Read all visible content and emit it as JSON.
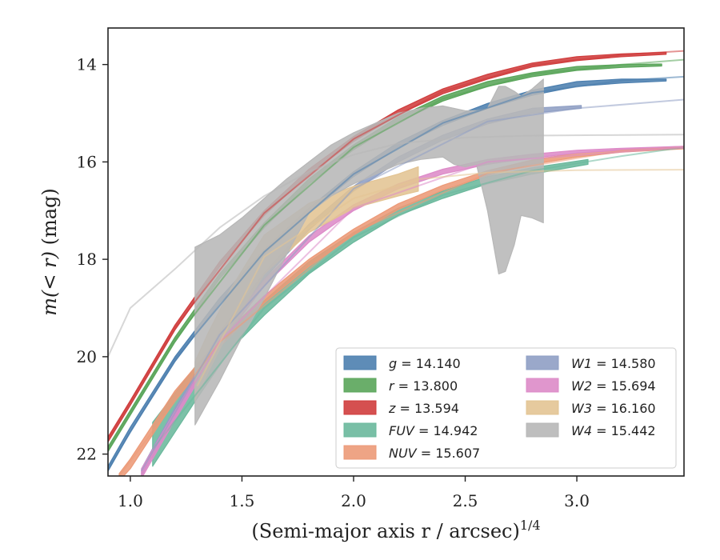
{
  "chart_data": {
    "type": "area",
    "xlabel": "(Semi-major axis r / arcsec)^1/4",
    "ylabel": "m(< r) (mag)",
    "xlim": [
      0.9,
      3.48
    ],
    "ylim": [
      22.45,
      13.25
    ],
    "y_inverted": true,
    "grid": false,
    "legend_position": "lower-right",
    "legend_columns": 2,
    "xticks": [
      "1.0",
      "1.5",
      "2.0",
      "2.5",
      "3.0"
    ],
    "xtick_values": [
      1.0,
      1.5,
      2.0,
      2.5,
      3.0
    ],
    "yticks": [
      "14",
      "16",
      "18",
      "20",
      "22"
    ],
    "ytick_values": [
      14,
      16,
      18,
      20,
      22
    ],
    "series": [
      {
        "name": "g = 14.140",
        "color": "#4c7faf",
        "band": [
          [
            0.9,
            22.35,
            22.25
          ],
          [
            1.0,
            21.55,
            21.45
          ],
          [
            1.2,
            20.1,
            20.0
          ],
          [
            1.4,
            18.9,
            18.8
          ],
          [
            1.6,
            17.9,
            17.8
          ],
          [
            1.8,
            17.05,
            16.95
          ],
          [
            2.0,
            16.3,
            16.2
          ],
          [
            2.2,
            15.7,
            15.6
          ],
          [
            2.4,
            15.25,
            15.15
          ],
          [
            2.6,
            14.9,
            14.8
          ],
          [
            2.8,
            14.63,
            14.53
          ],
          [
            3.0,
            14.45,
            14.35
          ],
          [
            3.2,
            14.38,
            14.3
          ],
          [
            3.4,
            14.34,
            14.3
          ]
        ],
        "extrapolation": [
          [
            0.9,
            22.3
          ],
          [
            1.2,
            20.05
          ],
          [
            1.6,
            17.85
          ],
          [
            2.0,
            16.25
          ],
          [
            2.4,
            15.2
          ],
          [
            2.8,
            14.58
          ],
          [
            3.2,
            14.33
          ],
          [
            3.48,
            14.25
          ]
        ]
      },
      {
        "name": "r = 13.800",
        "color": "#5aa55a",
        "band": [
          [
            0.9,
            21.95,
            21.85
          ],
          [
            1.0,
            21.2,
            21.1
          ],
          [
            1.2,
            19.7,
            19.6
          ],
          [
            1.4,
            18.4,
            18.3
          ],
          [
            1.6,
            17.35,
            17.25
          ],
          [
            1.8,
            16.45,
            16.35
          ],
          [
            2.0,
            15.75,
            15.65
          ],
          [
            2.2,
            15.18,
            15.08
          ],
          [
            2.4,
            14.75,
            14.65
          ],
          [
            2.6,
            14.45,
            14.35
          ],
          [
            2.8,
            14.25,
            14.17
          ],
          [
            3.0,
            14.12,
            14.04
          ],
          [
            3.2,
            14.06,
            14.0
          ],
          [
            3.38,
            14.03,
            13.99
          ]
        ],
        "extrapolation": [
          [
            0.9,
            21.9
          ],
          [
            1.2,
            19.65
          ],
          [
            1.6,
            17.3
          ],
          [
            2.0,
            15.7
          ],
          [
            2.4,
            14.7
          ],
          [
            2.8,
            14.2
          ],
          [
            3.2,
            14.0
          ],
          [
            3.48,
            13.9
          ]
        ]
      },
      {
        "name": "z = 13.594",
        "color": "#d03d3d",
        "band": [
          [
            0.9,
            21.75,
            21.65
          ],
          [
            1.0,
            21.0,
            20.9
          ],
          [
            1.2,
            19.45,
            19.35
          ],
          [
            1.4,
            18.15,
            18.05
          ],
          [
            1.6,
            17.1,
            17.0
          ],
          [
            1.8,
            16.25,
            16.15
          ],
          [
            2.0,
            15.58,
            15.48
          ],
          [
            2.2,
            15.03,
            14.93
          ],
          [
            2.4,
            14.6,
            14.5
          ],
          [
            2.6,
            14.3,
            14.2
          ],
          [
            2.8,
            14.05,
            13.97
          ],
          [
            3.0,
            13.92,
            13.84
          ],
          [
            3.2,
            13.84,
            13.78
          ],
          [
            3.4,
            13.79,
            13.75
          ]
        ],
        "extrapolation": [
          [
            0.9,
            21.7
          ],
          [
            1.2,
            19.4
          ],
          [
            1.6,
            17.05
          ],
          [
            2.0,
            15.53
          ],
          [
            2.4,
            14.55
          ],
          [
            2.8,
            14.01
          ],
          [
            3.2,
            13.8
          ],
          [
            3.48,
            13.72
          ]
        ]
      },
      {
        "name": "FUV = 14.942",
        "color": "#6ab89c",
        "band": [
          [
            1.1,
            22.25,
            21.35
          ],
          [
            1.2,
            21.55,
            20.75
          ],
          [
            1.3,
            20.85,
            20.15
          ],
          [
            1.45,
            19.85,
            19.45
          ],
          [
            1.6,
            19.15,
            18.85
          ],
          [
            1.8,
            18.3,
            18.05
          ],
          [
            2.0,
            17.65,
            17.45
          ],
          [
            2.2,
            17.1,
            16.95
          ],
          [
            2.4,
            16.75,
            16.6
          ],
          [
            2.6,
            16.45,
            16.3
          ],
          [
            2.8,
            16.25,
            16.12
          ],
          [
            3.05,
            16.05,
            15.95
          ]
        ],
        "extrapolation": [
          [
            1.1,
            21.9
          ],
          [
            1.6,
            19.0
          ],
          [
            2.0,
            17.55
          ],
          [
            2.4,
            16.68
          ],
          [
            2.8,
            16.18
          ],
          [
            3.2,
            15.88
          ],
          [
            3.48,
            15.7
          ]
        ]
      },
      {
        "name": "NUV = 15.607",
        "color": "#ec9a78",
        "band": [
          [
            0.95,
            22.55,
            22.4
          ],
          [
            1.0,
            22.3,
            22.1
          ],
          [
            1.2,
            20.9,
            20.7
          ],
          [
            1.4,
            19.8,
            19.62
          ],
          [
            1.6,
            18.9,
            18.75
          ],
          [
            1.8,
            18.15,
            18.0
          ],
          [
            2.0,
            17.5,
            17.38
          ],
          [
            2.2,
            16.98,
            16.86
          ],
          [
            2.4,
            16.58,
            16.48
          ],
          [
            2.6,
            16.28,
            16.18
          ],
          [
            2.8,
            16.05,
            15.96
          ],
          [
            3.0,
            15.9,
            15.82
          ],
          [
            3.2,
            15.8,
            15.74
          ],
          [
            3.48,
            15.73,
            15.68
          ]
        ],
        "extrapolation": [
          [
            0.95,
            22.45
          ],
          [
            1.4,
            19.7
          ],
          [
            2.0,
            17.45
          ],
          [
            2.6,
            16.23
          ],
          [
            3.2,
            15.77
          ],
          [
            3.48,
            15.7
          ]
        ]
      },
      {
        "name": "W1 = 14.580",
        "color": "#8f9fc4",
        "band": [
          [
            1.05,
            22.45,
            22.3
          ],
          [
            1.2,
            21.2,
            21.05
          ],
          [
            1.4,
            19.65,
            19.5
          ],
          [
            1.6,
            18.4,
            18.28
          ],
          [
            1.8,
            17.4,
            17.28
          ],
          [
            2.0,
            16.6,
            16.5
          ],
          [
            2.2,
            16.0,
            15.9
          ],
          [
            2.4,
            15.55,
            15.45
          ],
          [
            2.6,
            15.22,
            15.12
          ],
          [
            2.8,
            15.0,
            14.9
          ],
          [
            3.02,
            14.9,
            14.84
          ]
        ],
        "extrapolation": [
          [
            1.05,
            22.35
          ],
          [
            1.4,
            19.55
          ],
          [
            2.0,
            16.55
          ],
          [
            2.6,
            15.17
          ],
          [
            3.0,
            14.9
          ],
          [
            3.48,
            14.72
          ]
        ]
      },
      {
        "name": "W2 = 15.694",
        "color": "#dd8bc8",
        "band": [
          [
            1.05,
            22.5,
            22.3
          ],
          [
            1.2,
            21.3,
            21.12
          ],
          [
            1.4,
            19.75,
            19.6
          ],
          [
            1.6,
            18.55,
            18.42
          ],
          [
            1.8,
            17.65,
            17.52
          ],
          [
            2.0,
            17.0,
            16.88
          ],
          [
            2.2,
            16.55,
            16.45
          ],
          [
            2.4,
            16.25,
            16.15
          ],
          [
            2.6,
            16.05,
            15.95
          ],
          [
            2.8,
            15.92,
            15.84
          ],
          [
            3.0,
            15.82,
            15.76
          ],
          [
            3.2,
            15.76,
            15.72
          ],
          [
            3.48,
            15.72,
            15.68
          ]
        ],
        "extrapolation": [
          [
            1.05,
            22.4
          ],
          [
            1.4,
            19.68
          ],
          [
            2.0,
            16.95
          ],
          [
            2.6,
            16.0
          ],
          [
            3.48,
            15.7
          ]
        ]
      },
      {
        "name": "W3 = 16.160",
        "color": "#e3c493",
        "band": [
          [
            1.29,
            20.9,
            20.1
          ],
          [
            1.35,
            20.3,
            19.5
          ],
          [
            1.45,
            19.4,
            18.6
          ],
          [
            1.6,
            18.3,
            17.5
          ],
          [
            1.8,
            17.45,
            16.85
          ],
          [
            2.0,
            16.95,
            16.5
          ],
          [
            2.2,
            16.7,
            16.25
          ],
          [
            2.29,
            16.6,
            16.1
          ]
        ],
        "extrapolation": [
          [
            1.3,
            20.6
          ],
          [
            1.6,
            17.95
          ],
          [
            2.0,
            16.75
          ],
          [
            2.3,
            16.35
          ],
          [
            2.6,
            16.22
          ],
          [
            3.0,
            16.17
          ],
          [
            3.48,
            16.16
          ]
        ]
      },
      {
        "name": "W4 = 15.442",
        "color": "#b7b7b7",
        "band": [
          [
            1.29,
            21.4,
            17.75
          ],
          [
            1.4,
            20.5,
            17.5
          ],
          [
            1.5,
            19.6,
            17.15
          ],
          [
            1.6,
            18.8,
            16.75
          ],
          [
            1.7,
            17.9,
            16.35
          ],
          [
            1.8,
            17.05,
            16.0
          ],
          [
            1.9,
            16.7,
            15.65
          ],
          [
            2.0,
            16.45,
            15.4
          ],
          [
            2.1,
            16.25,
            15.2
          ],
          [
            2.2,
            16.05,
            15.0
          ],
          [
            2.3,
            15.95,
            14.9
          ],
          [
            2.4,
            15.9,
            14.85
          ],
          [
            2.45,
            16.05,
            14.9
          ],
          [
            2.5,
            16.1,
            14.95
          ],
          [
            2.55,
            16.05,
            14.95
          ],
          [
            2.6,
            17.0,
            14.9
          ],
          [
            2.65,
            18.3,
            14.45
          ],
          [
            2.68,
            18.25,
            14.45
          ],
          [
            2.72,
            17.7,
            14.55
          ],
          [
            2.75,
            17.1,
            14.65
          ],
          [
            2.8,
            17.15,
            14.5
          ],
          [
            2.85,
            17.25,
            14.3
          ]
        ],
        "extrapolation": [
          [
            0.9,
            20.0
          ],
          [
            1.0,
            19.0
          ],
          [
            1.2,
            18.2
          ],
          [
            1.4,
            17.35
          ],
          [
            1.6,
            16.7
          ],
          [
            1.8,
            16.2
          ],
          [
            2.0,
            15.85
          ],
          [
            2.2,
            15.62
          ],
          [
            2.5,
            15.5
          ],
          [
            2.8,
            15.46
          ],
          [
            3.1,
            15.45
          ],
          [
            3.48,
            15.44
          ]
        ]
      }
    ]
  }
}
